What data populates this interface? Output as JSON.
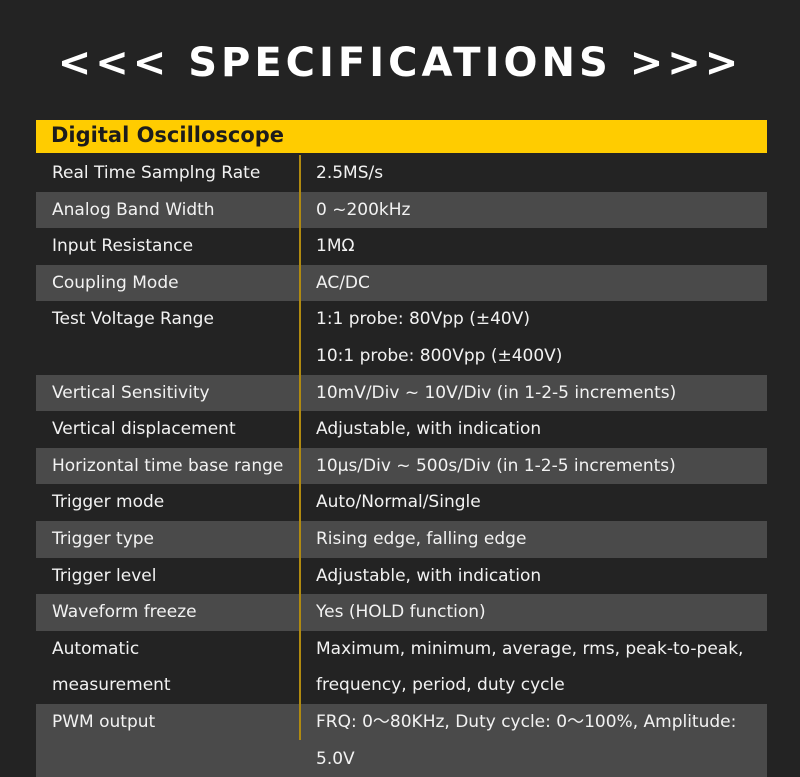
{
  "title": "<<< SPECIFICATIONS >>>",
  "section": "Digital Oscilloscope",
  "colors": {
    "accent": "#ffcc00",
    "background": "#232323",
    "stripe": "#4a4a4a"
  },
  "rows": [
    {
      "label": "Real Time Samplng Rate",
      "values": [
        "2.5MS/s"
      ]
    },
    {
      "label": "Analog Band Width",
      "values": [
        "0 ~200kHz"
      ]
    },
    {
      "label": "Input Resistance",
      "values": [
        "1MΩ"
      ]
    },
    {
      "label": "Coupling Mode",
      "values": [
        "AC/DC"
      ]
    },
    {
      "label": "Test Voltage Range",
      "values": [
        "1:1 probe: 80Vpp (±40V)",
        "10:1 probe: 800Vpp (±400V)"
      ]
    },
    {
      "label": "Vertical Sensitivity",
      "values": [
        "10mV/Div ~ 10V/Div  (in 1-2-5 increments)"
      ]
    },
    {
      "label": "Vertical displacement",
      "values": [
        "Adjustable, with indication"
      ]
    },
    {
      "label": "Horizontal time base range",
      "values": [
        "10μs/Div ~ 500s/Div (in 1-2-5 increments)"
      ]
    },
    {
      "label": "Trigger mode",
      "values": [
        "Auto/Normal/Single"
      ]
    },
    {
      "label": "Trigger type",
      "values": [
        "Rising edge, falling edge"
      ]
    },
    {
      "label": "Trigger level",
      "values": [
        "Adjustable, with indication"
      ]
    },
    {
      "label": "Waveform freeze",
      "values": [
        "Yes (HOLD function)"
      ]
    },
    {
      "label": "Automatic measurement",
      "values": [
        "Maximum, minimum, average, rms, peak-to-peak,",
        "frequency, period, duty cycle"
      ]
    },
    {
      "label": "PWM output",
      "values": [
        "FRQ: 0～80KHz, Duty cycle: 0～100%, Amplitude: 5.0V"
      ]
    }
  ]
}
